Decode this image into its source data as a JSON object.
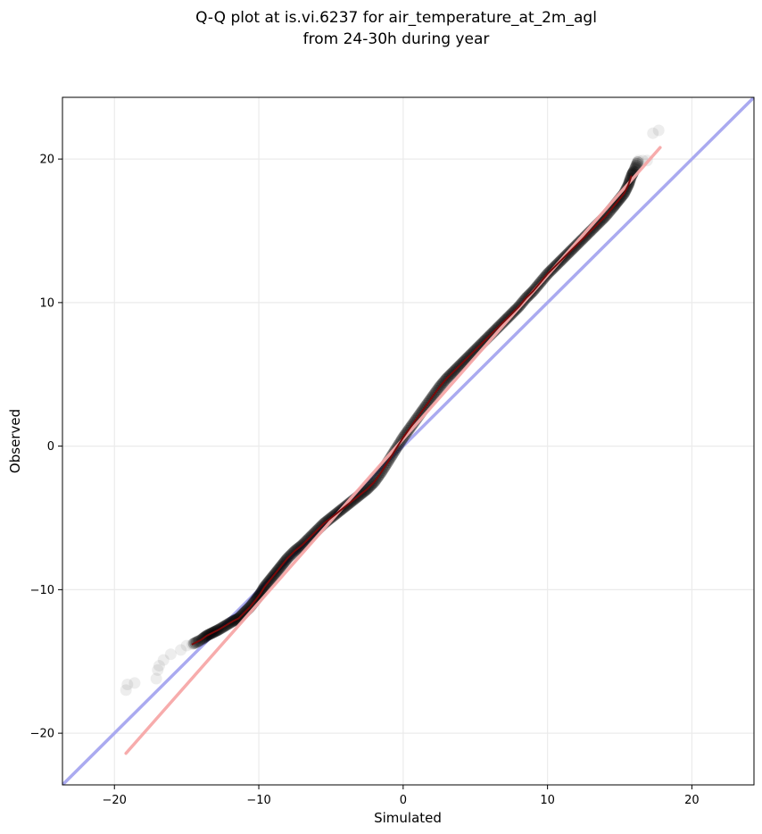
{
  "chart_data": {
    "type": "scatter",
    "title": [
      "Q-Q plot at is.vi.6237 for air_temperature_at_2m_agl",
      "from 24-30h during year"
    ],
    "xlabel": "Simulated",
    "ylabel": "Observed",
    "xlim": [
      -23.6,
      24.3
    ],
    "ylim": [
      -23.6,
      24.3
    ],
    "xticks": [
      -20,
      -10,
      0,
      10,
      20
    ],
    "yticks": [
      -20,
      -10,
      0,
      10,
      20
    ],
    "xtick_labels": [
      "−20",
      "−10",
      "0",
      "10",
      "20"
    ],
    "ytick_labels": [
      "−20",
      "−10",
      "0",
      "10",
      "20"
    ],
    "grid": true,
    "series": [
      {
        "role": "quantiles",
        "color": "#000000",
        "points": [
          [
            -19.2,
            -17.0
          ],
          [
            -19.1,
            -16.6
          ],
          [
            -18.6,
            -16.5
          ],
          [
            -17.1,
            -16.2
          ],
          [
            -17.0,
            -15.6
          ],
          [
            -16.9,
            -15.3
          ],
          [
            -16.6,
            -14.9
          ],
          [
            -16.1,
            -14.5
          ],
          [
            -15.4,
            -14.2
          ],
          [
            -15.0,
            -13.9
          ],
          [
            -14.6,
            -13.8
          ],
          [
            -14.0,
            -13.5
          ],
          [
            -13.6,
            -13.2
          ],
          [
            -13.2,
            -13.0
          ],
          [
            -12.8,
            -12.8
          ],
          [
            -12.3,
            -12.5
          ],
          [
            -11.8,
            -12.2
          ],
          [
            -11.4,
            -12.0
          ],
          [
            -11.0,
            -11.6
          ],
          [
            -10.6,
            -11.2
          ],
          [
            -10.2,
            -10.7
          ],
          [
            -9.9,
            -10.3
          ],
          [
            -9.6,
            -9.8
          ],
          [
            -9.2,
            -9.3
          ],
          [
            -8.8,
            -8.8
          ],
          [
            -8.4,
            -8.3
          ],
          [
            -8.0,
            -7.8
          ],
          [
            -7.5,
            -7.3
          ],
          [
            -7.0,
            -6.9
          ],
          [
            -6.5,
            -6.4
          ],
          [
            -6.0,
            -5.9
          ],
          [
            -5.5,
            -5.4
          ],
          [
            -5.0,
            -5.0
          ],
          [
            -4.5,
            -4.6
          ],
          [
            -4.0,
            -4.2
          ],
          [
            -3.5,
            -3.8
          ],
          [
            -3.0,
            -3.4
          ],
          [
            -2.5,
            -3.0
          ],
          [
            -2.0,
            -2.5
          ],
          [
            -1.5,
            -1.8
          ],
          [
            -1.0,
            -1.0
          ],
          [
            -0.5,
            -0.2
          ],
          [
            0.0,
            0.6
          ],
          [
            0.5,
            1.3
          ],
          [
            1.0,
            2.0
          ],
          [
            1.5,
            2.7
          ],
          [
            2.0,
            3.4
          ],
          [
            2.5,
            4.1
          ],
          [
            3.0,
            4.7
          ],
          [
            3.5,
            5.2
          ],
          [
            4.0,
            5.7
          ],
          [
            4.5,
            6.2
          ],
          [
            5.0,
            6.7
          ],
          [
            5.5,
            7.2
          ],
          [
            6.0,
            7.7
          ],
          [
            6.5,
            8.2
          ],
          [
            7.0,
            8.7
          ],
          [
            7.5,
            9.2
          ],
          [
            8.0,
            9.7
          ],
          [
            8.5,
            10.3
          ],
          [
            9.0,
            10.8
          ],
          [
            9.5,
            11.4
          ],
          [
            10.0,
            12.0
          ],
          [
            10.5,
            12.5
          ],
          [
            11.0,
            13.0
          ],
          [
            11.5,
            13.5
          ],
          [
            12.0,
            14.0
          ],
          [
            12.5,
            14.5
          ],
          [
            13.0,
            15.0
          ],
          [
            13.5,
            15.5
          ],
          [
            14.0,
            16.0
          ],
          [
            14.5,
            16.6
          ],
          [
            14.9,
            17.1
          ],
          [
            15.3,
            17.6
          ],
          [
            15.6,
            18.2
          ],
          [
            15.8,
            18.8
          ],
          [
            16.0,
            19.2
          ],
          [
            16.3,
            19.9
          ],
          [
            16.6,
            19.9
          ],
          [
            16.9,
            19.9
          ],
          [
            17.3,
            21.8
          ],
          [
            17.7,
            22.0
          ]
        ]
      },
      {
        "role": "identity line",
        "color": "#aaaaf0",
        "x": [
          -23.6,
          24.3
        ],
        "y": [
          -23.6,
          24.3
        ]
      },
      {
        "role": "fit line",
        "color": "#f7a8a8",
        "x": [
          -19.2,
          17.8
        ],
        "y": [
          -21.4,
          20.8
        ]
      }
    ]
  }
}
